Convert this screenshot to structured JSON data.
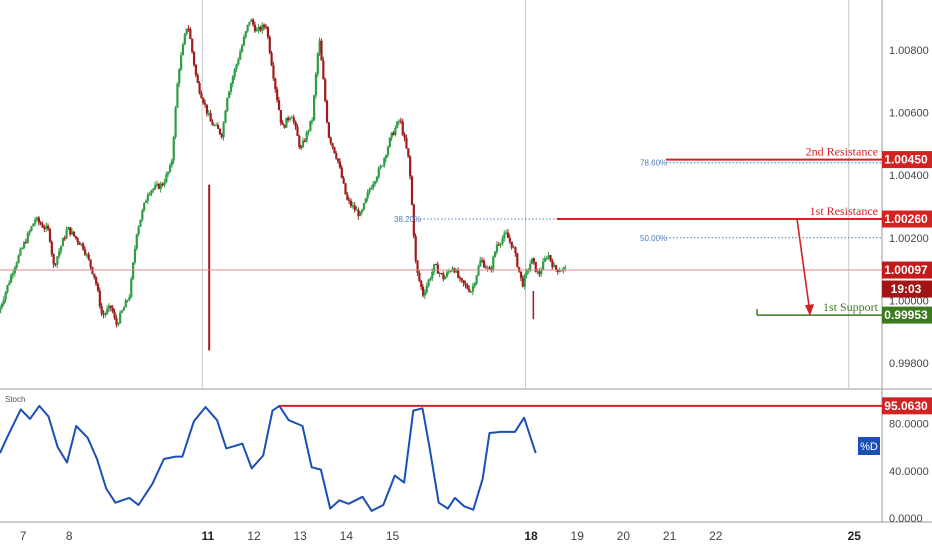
{
  "chart_data": [
    {
      "type": "candlestick",
      "title": "",
      "price_scale": {
        "ylim": [
          0.9972,
          1.0096
        ],
        "ticks": [
          "1.00800",
          "1.00600",
          "1.00400",
          "1.00200",
          "1.00000",
          "0.99800"
        ],
        "tick_values": [
          1.008,
          1.006,
          1.004,
          1.002,
          1.0,
          0.998
        ]
      },
      "x_axis": {
        "xlim": [
          6.5,
          25.6
        ],
        "labels": [
          {
            "text": "7",
            "x": 7,
            "bold": false
          },
          {
            "text": "8",
            "x": 8,
            "bold": false
          },
          {
            "text": "11",
            "x": 11,
            "bold": true
          },
          {
            "text": "12",
            "x": 12,
            "bold": false
          },
          {
            "text": "13",
            "x": 13,
            "bold": false
          },
          {
            "text": "14",
            "x": 14,
            "bold": false
          },
          {
            "text": "15",
            "x": 15,
            "bold": false
          },
          {
            "text": "18",
            "x": 18,
            "bold": true
          },
          {
            "text": "19",
            "x": 19,
            "bold": false
          },
          {
            "text": "20",
            "x": 20,
            "bold": false
          },
          {
            "text": "21",
            "x": 21,
            "bold": false
          },
          {
            "text": "22",
            "x": 22,
            "bold": false
          },
          {
            "text": "25",
            "x": 25,
            "bold": true
          }
        ]
      },
      "price_path": [
        [
          6.5,
          0.9996
        ],
        [
          6.85,
          1.0011
        ],
        [
          7.3,
          1.0026
        ],
        [
          7.6,
          1.0022
        ],
        [
          7.7,
          1.0011
        ],
        [
          8.0,
          1.0023
        ],
        [
          8.35,
          1.0017
        ],
        [
          8.6,
          1.0007
        ],
        [
          8.75,
          0.9995
        ],
        [
          8.95,
          0.9998
        ],
        [
          9.05,
          0.9992
        ],
        [
          9.35,
          1.0002
        ],
        [
          9.5,
          1.0022
        ],
        [
          9.75,
          1.0035
        ],
        [
          10.05,
          1.0037
        ],
        [
          10.25,
          1.0043
        ],
        [
          10.4,
          1.0073
        ],
        [
          10.6,
          1.0089
        ],
        [
          10.8,
          1.007
        ],
        [
          11.1,
          1.0057
        ],
        [
          11.35,
          1.0053
        ],
        [
          11.45,
          1.0065
        ],
        [
          11.75,
          1.008
        ],
        [
          11.95,
          1.009
        ],
        [
          12.1,
          1.0086
        ],
        [
          12.3,
          1.0088
        ],
        [
          12.5,
          1.0068
        ],
        [
          12.65,
          1.0055
        ],
        [
          12.85,
          1.006
        ],
        [
          13.05,
          1.0048
        ],
        [
          13.3,
          1.0058
        ],
        [
          13.45,
          1.0084
        ],
        [
          13.65,
          1.0053
        ],
        [
          13.85,
          1.0045
        ],
        [
          14.05,
          1.0032
        ],
        [
          14.35,
          1.0027
        ],
        [
          14.55,
          1.0036
        ],
        [
          14.8,
          1.0043
        ],
        [
          15.0,
          1.0052
        ],
        [
          15.2,
          1.0058
        ],
        [
          15.4,
          1.0044
        ],
        [
          15.55,
          1.001
        ],
        [
          15.7,
          1.0002
        ],
        [
          15.95,
          1.0011
        ],
        [
          16.15,
          1.0007
        ],
        [
          16.35,
          1.0011
        ],
        [
          16.5,
          1.0006
        ],
        [
          16.75,
          1.0003
        ],
        [
          16.95,
          1.0013
        ],
        [
          17.15,
          1.0009
        ],
        [
          17.3,
          1.0018
        ],
        [
          17.5,
          1.0021
        ],
        [
          17.65,
          1.0017
        ],
        [
          17.85,
          1.0005
        ],
        [
          18.05,
          1.0013
        ],
        [
          18.2,
          1.0008
        ],
        [
          18.4,
          1.0015
        ],
        [
          18.55,
          1.001
        ],
        [
          18.75,
          1.001
        ]
      ],
      "last_price": "1.00097",
      "last_price_value": 1.00097,
      "countdown": "19:03",
      "levels": [
        {
          "name": "2nd Resistance",
          "price": "1.00450",
          "value": 1.0045,
          "color": "#d32222"
        },
        {
          "name": "1st Resistance",
          "price": "1.00260",
          "value": 1.0026,
          "color": "#d32222"
        },
        {
          "name": "1st Support",
          "price": "0.99953",
          "value": 0.99953,
          "color": "#3d7a1e"
        }
      ],
      "fibonacci": [
        {
          "label": "78.60%",
          "value": 1.0044
        },
        {
          "label": "38.20%",
          "value": 1.0026
        },
        {
          "label": "50.00%",
          "value": 1.002
        }
      ],
      "colors": {
        "up": "#2e9e46",
        "down": "#9e1c1c",
        "resistance": "#d32222",
        "support": "#3d7a1e",
        "fib": "#4a7db8"
      }
    },
    {
      "type": "line",
      "title": "Stoch",
      "series": [
        {
          "name": "%D",
          "color": "#1a4fb5",
          "values": [
            [
              6.5,
              55
            ],
            [
              6.65,
              68
            ],
            [
              6.95,
              92
            ],
            [
              7.15,
              84
            ],
            [
              7.35,
              95
            ],
            [
              7.55,
              86
            ],
            [
              7.75,
              60
            ],
            [
              7.95,
              47
            ],
            [
              8.15,
              78
            ],
            [
              8.4,
              68
            ],
            [
              8.6,
              50
            ],
            [
              8.8,
              25
            ],
            [
              9.0,
              13
            ],
            [
              9.3,
              17
            ],
            [
              9.5,
              11
            ],
            [
              9.8,
              29
            ],
            [
              10.05,
              50
            ],
            [
              10.3,
              52
            ],
            [
              10.45,
              52
            ],
            [
              10.7,
              82
            ],
            [
              10.95,
              94
            ],
            [
              11.2,
              83
            ],
            [
              11.4,
              59
            ],
            [
              11.75,
              63
            ],
            [
              11.95,
              42
            ],
            [
              12.2,
              53
            ],
            [
              12.4,
              91
            ],
            [
              12.55,
              95
            ],
            [
              12.75,
              83
            ],
            [
              13.05,
              78
            ],
            [
              13.25,
              43
            ],
            [
              13.45,
              41
            ],
            [
              13.65,
              8
            ],
            [
              13.85,
              15
            ],
            [
              14.05,
              12
            ],
            [
              14.35,
              18
            ],
            [
              14.55,
              6
            ],
            [
              14.8,
              11
            ],
            [
              15.05,
              36
            ],
            [
              15.25,
              30
            ],
            [
              15.45,
              91
            ],
            [
              15.65,
              93
            ],
            [
              15.8,
              60
            ],
            [
              16.0,
              13
            ],
            [
              16.2,
              8
            ],
            [
              16.35,
              17
            ],
            [
              16.55,
              10
            ],
            [
              16.75,
              7
            ],
            [
              16.95,
              33
            ],
            [
              17.1,
              72
            ],
            [
              17.35,
              73
            ],
            [
              17.45,
              73
            ],
            [
              17.65,
              73
            ],
            [
              17.85,
              85
            ],
            [
              18.1,
              55
            ]
          ]
        }
      ],
      "ylim": [
        0,
        100
      ],
      "ticks": [
        "80.0000",
        "40.0000",
        "0.0000"
      ],
      "tick_values": [
        80,
        40,
        0
      ],
      "level": {
        "price": "95.0630",
        "value": 95.063,
        "color": "#d32222"
      },
      "legend": "%D"
    }
  ]
}
